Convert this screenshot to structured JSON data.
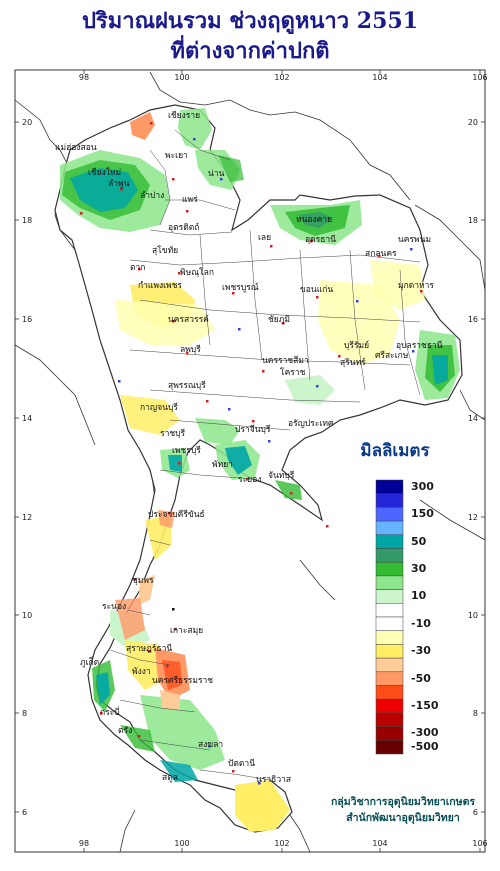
{
  "title_line1": "ปริมาณฝนรวม ช่วงฤดูหนาว 2551",
  "title_line2": "ที่ต่างจากค่าปกติ",
  "legend": {
    "title": "มิลลิเมตร",
    "entries": [
      {
        "label": "300",
        "color": "#000099"
      },
      {
        "label": "",
        "color": "#2626d9"
      },
      {
        "label": "150",
        "color": "#4d66ff"
      },
      {
        "label": "",
        "color": "#66b3ff"
      },
      {
        "label": "50",
        "color": "#00a6a6"
      },
      {
        "label": "",
        "color": "#33996b"
      },
      {
        "label": "30",
        "color": "#33bb33"
      },
      {
        "label": "",
        "color": "#8ce68c"
      },
      {
        "label": "10",
        "color": "#ccf5cc"
      },
      {
        "label": "",
        "color": "#ffffff"
      },
      {
        "label": "-10",
        "color": "#ffffff"
      },
      {
        "label": "",
        "color": "#ffffb3"
      },
      {
        "label": "-30",
        "color": "#ffee66"
      },
      {
        "label": "",
        "color": "#ffcc99"
      },
      {
        "label": "-50",
        "color": "#ff9966"
      },
      {
        "label": "",
        "color": "#ff4d1a"
      },
      {
        "label": "-150",
        "color": "#ee0000"
      },
      {
        "label": "",
        "color": "#bb0000"
      },
      {
        "label": "-300",
        "color": "#990000"
      },
      {
        "label": "-500",
        "color": "#660000"
      }
    ]
  },
  "axes": {
    "x_ticks": [
      "98",
      "100",
      "102",
      "104",
      "106"
    ],
    "y_ticks": [
      "20",
      "18",
      "16",
      "14",
      "12",
      "10",
      "8",
      "6"
    ]
  },
  "provinces": [
    "เชียงราย",
    "แม่ฮ่องสอน",
    "เชียงใหม่",
    "ลำพูน",
    "พะเยา",
    "น่าน",
    "ลำปาง",
    "แพร่",
    "อุตรดิตถ์",
    "หนองคาย",
    "นครพนม",
    "เลย",
    "อุดรธานี",
    "สกลนคร",
    "มุกดาหาร",
    "ตาก",
    "สุโขทัย",
    "พิษณุโลก",
    "กำแพงเพชร",
    "เพชรบูรณ์",
    "ขอนแก่น",
    "ชัยภูมิ",
    "นครสวรรค์",
    "อุบลราชธานี",
    "ลพบุรี",
    "บุรีรัมย์",
    "สุรินทร์",
    "ศรีสะเกษ",
    "นครราชสีมา",
    "โคราช",
    "สุพรรณบุรี",
    "กาญจนบุรี",
    "ราชบุรี",
    "ปราจีนบุรี",
    "อรัญประเทศ",
    "เพชรบุรี",
    "พัทยา",
    "ระยอง",
    "จันทบุรี",
    "ประจวบคีรีขันธ์",
    "ชุมพร",
    "ระนอง",
    "สุราษฎร์ธานี",
    "เกาะสมุย",
    "ภูเก็ต",
    "พังงา",
    "นครศรีธรรมราช",
    "กระบี่",
    "ตรัง",
    "สงขลา",
    "ปัตตานี",
    "นราธิวาส",
    "สตูล"
  ],
  "credit_line1": "กลุ่มวิชาการอุตุนิยมวิทยาเกษตร",
  "credit_line2": "สำนักพัฒนาอุตุนิยมวิทยา"
}
